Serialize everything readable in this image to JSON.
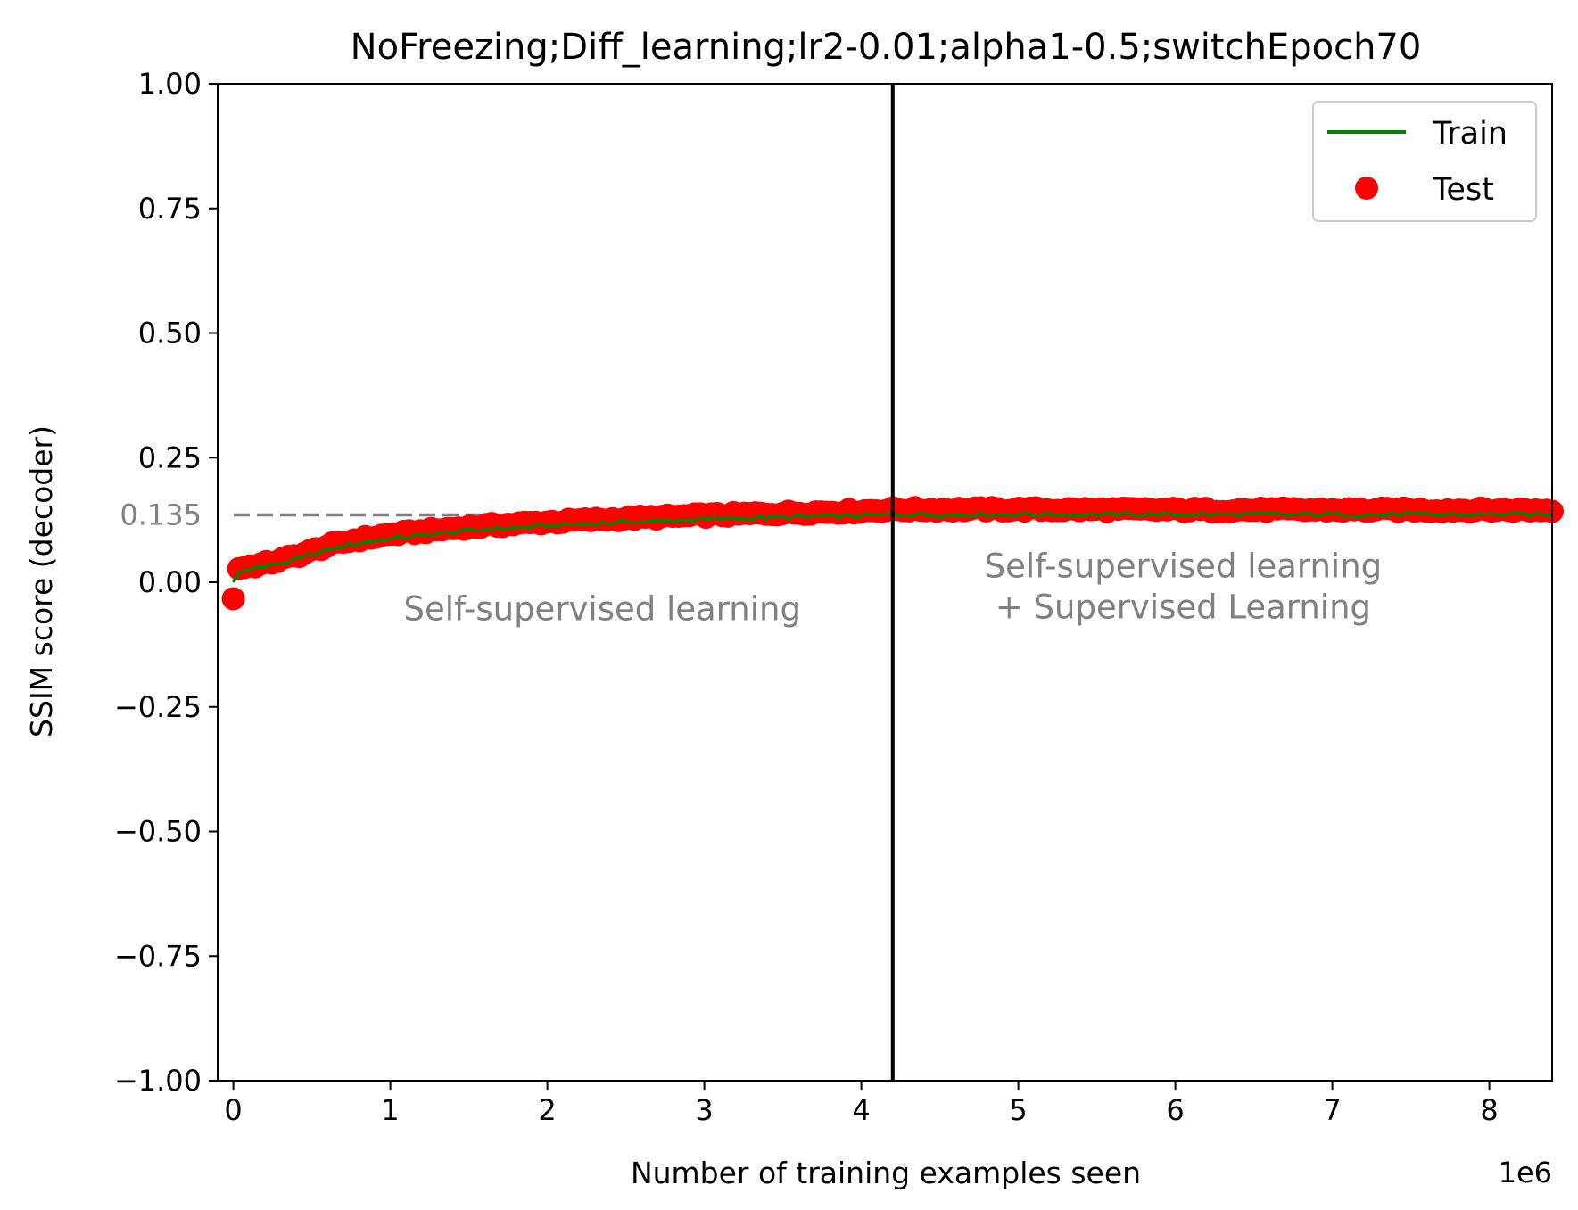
{
  "chart_data": {
    "type": "line",
    "title": "NoFreezing;Diff_learning;lr2-0.01;alpha1-0.5;switchEpoch70",
    "xlabel": "Number of training examples seen",
    "ylabel": "SSIM score (decoder)",
    "x_offset_label": "1e6",
    "xlim": [
      -0.1,
      8.4
    ],
    "ylim": [
      -1.0,
      1.0
    ],
    "x_ticks": [
      {
        "value": 0,
        "label": "0"
      },
      {
        "value": 1,
        "label": "1"
      },
      {
        "value": 2,
        "label": "2"
      },
      {
        "value": 3,
        "label": "3"
      },
      {
        "value": 4,
        "label": "4"
      },
      {
        "value": 5,
        "label": "5"
      },
      {
        "value": 6,
        "label": "6"
      },
      {
        "value": 7,
        "label": "7"
      },
      {
        "value": 8,
        "label": "8"
      }
    ],
    "y_ticks": [
      {
        "value": 1.0,
        "label": "1.00"
      },
      {
        "value": 0.75,
        "label": "0.75"
      },
      {
        "value": 0.5,
        "label": "0.50"
      },
      {
        "value": 0.25,
        "label": "0.25"
      },
      {
        "value": 0.0,
        "label": "0.00"
      },
      {
        "value": -0.25,
        "label": "−0.25"
      },
      {
        "value": -0.5,
        "label": "−0.50"
      },
      {
        "value": -0.75,
        "label": "−0.75"
      },
      {
        "value": -1.0,
        "label": "−1.00"
      }
    ],
    "grid": false,
    "legend_position": "top-right",
    "hline": {
      "value": 0.135,
      "label": "0.135",
      "color": "#808080",
      "style": "dashed"
    },
    "vline": {
      "value": 4.2,
      "color": "#000000"
    },
    "annotations": [
      {
        "lines": [
          "Self-supervised learning"
        ],
        "x": 2.35,
        "y": -0.055
      },
      {
        "lines": [
          "Self-supervised learning",
          "+ Supervised Learning"
        ],
        "x": 6.05,
        "y": -0.01
      }
    ],
    "series": [
      {
        "name": "Train",
        "kind": "line",
        "color": "#008000",
        "x_range": [
          0.0,
          8.4
        ],
        "points": 241,
        "curve": [
          [
            0.0,
            0.0
          ],
          [
            0.03,
            0.018
          ],
          [
            0.1,
            0.028
          ],
          [
            0.2,
            0.032
          ],
          [
            0.3,
            0.038
          ],
          [
            0.4,
            0.045
          ],
          [
            0.5,
            0.055
          ],
          [
            0.6,
            0.065
          ],
          [
            0.75,
            0.076
          ],
          [
            1.0,
            0.088
          ],
          [
            1.5,
            0.104
          ],
          [
            2.0,
            0.114
          ],
          [
            2.5,
            0.121
          ],
          [
            3.0,
            0.127
          ],
          [
            3.5,
            0.131
          ],
          [
            4.0,
            0.134
          ],
          [
            4.2,
            0.136
          ],
          [
            5.0,
            0.136
          ],
          [
            6.0,
            0.136
          ],
          [
            7.0,
            0.136
          ],
          [
            8.4,
            0.136
          ]
        ]
      },
      {
        "name": "Test",
        "kind": "scatter",
        "color": "#ff0000",
        "x_range": [
          0.0,
          8.4
        ],
        "points": 241,
        "curve": [
          [
            0.0,
            -0.033
          ],
          [
            0.03,
            0.028
          ],
          [
            0.1,
            0.032
          ],
          [
            0.2,
            0.037
          ],
          [
            0.3,
            0.045
          ],
          [
            0.4,
            0.053
          ],
          [
            0.5,
            0.063
          ],
          [
            0.6,
            0.073
          ],
          [
            0.75,
            0.084
          ],
          [
            1.0,
            0.096
          ],
          [
            1.5,
            0.111
          ],
          [
            2.0,
            0.121
          ],
          [
            2.5,
            0.128
          ],
          [
            3.0,
            0.134
          ],
          [
            3.5,
            0.139
          ],
          [
            4.0,
            0.143
          ],
          [
            4.2,
            0.146
          ],
          [
            5.0,
            0.146
          ],
          [
            6.0,
            0.145
          ],
          [
            7.0,
            0.145
          ],
          [
            8.4,
            0.145
          ]
        ]
      }
    ]
  }
}
